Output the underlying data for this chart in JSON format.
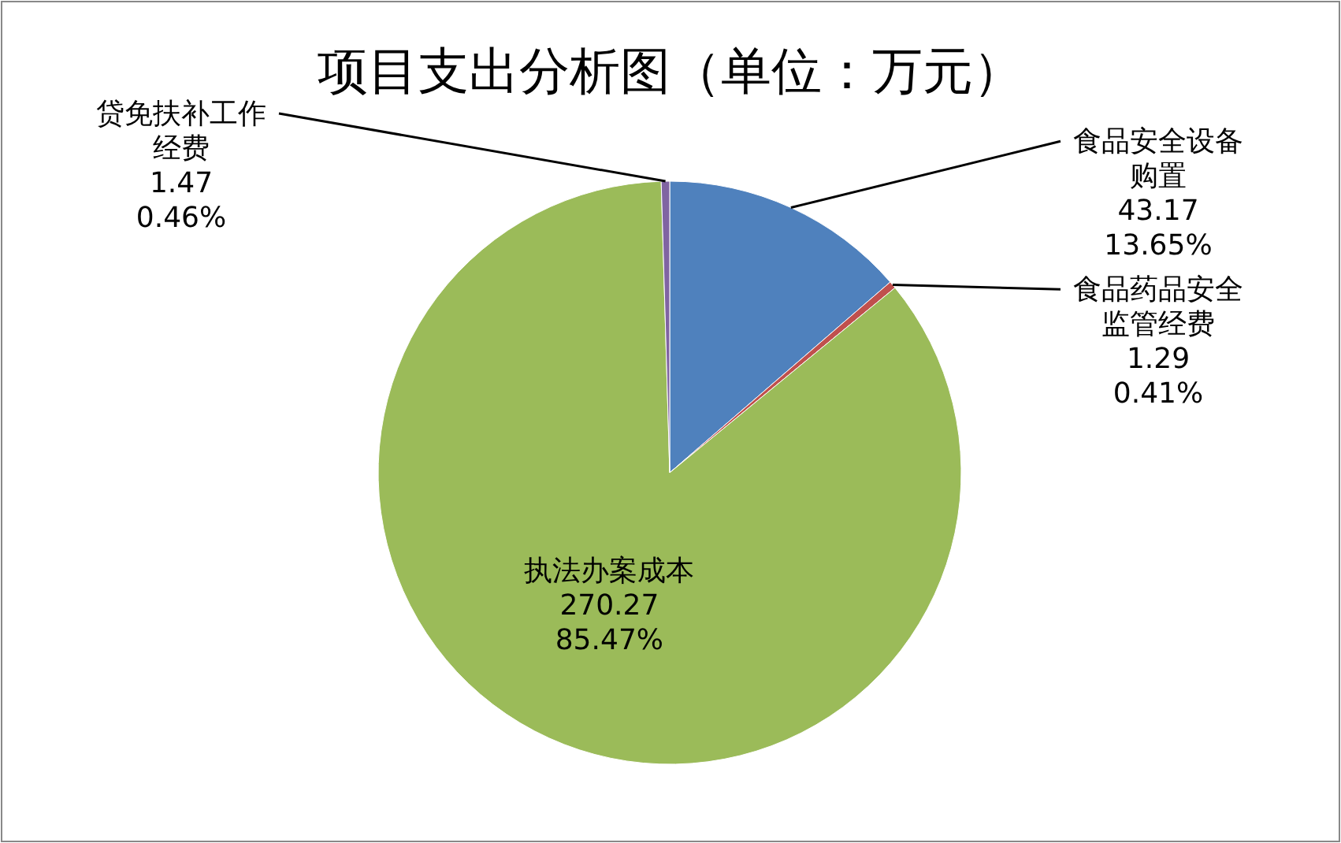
{
  "chart_data": {
    "type": "pie",
    "title": "项目支出分析图（单位：万元）",
    "categories": [
      "食品安全设备购置",
      "食品药品安全监管经费",
      "执法办案成本",
      "贷免扶补工作经费"
    ],
    "values": [
      43.17,
      1.29,
      270.27,
      1.47
    ],
    "colors": [
      "#4f81bd",
      "#c0504d",
      "#9bbb59",
      "#8064a2"
    ],
    "value_labels": [
      "43.17\n13.65%",
      "1.29\n0.41%",
      "270.27\n85.47%",
      "1.47\n0.46%"
    ]
  }
}
